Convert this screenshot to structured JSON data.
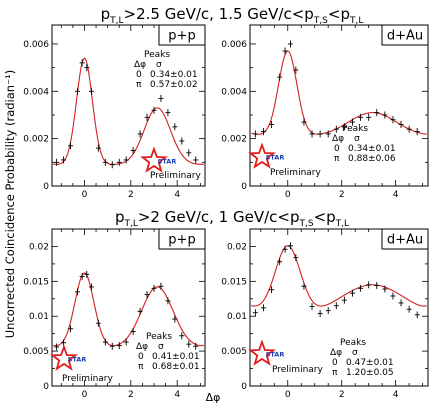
{
  "figure": {
    "row_titles": [
      "p_T,L>2.5 GeV/c,  1.5 GeV/c<p_T,S<p_T,L",
      "p_T,L>2 GeV/c,  1 GeV/c<p_T,S<p_T,L"
    ],
    "row_title_parts": [
      {
        "a": "p",
        "a_sub": "T,L",
        "b": ">2.5 GeV/c,  1.5 GeV/c<p",
        "b_sub": "T,S",
        "c": "<p",
        "c_sub": "T,L"
      },
      {
        "a": "p",
        "a_sub": "T,L",
        "b": ">2 GeV/c,  1 GeV/c<p",
        "b_sub": "T,S",
        "c": "<p",
        "c_sub": "T,L"
      }
    ],
    "ylabel": "Uncorrected Coincidence Probability (radian⁻¹)",
    "xlabel": "Δφ",
    "legend_header": "Peaks",
    "legend_cols": [
      "Δφ",
      "σ"
    ],
    "star_label": "STAR",
    "preliminary_label": "Preliminary",
    "colors": {
      "fit": "#d42020",
      "data": "#000000",
      "star": "#e41b1b",
      "star_text": "#1b3fb5"
    }
  },
  "chart_data": [
    {
      "type": "scatter",
      "panel": "top-left",
      "system": "p+p",
      "xlim": [
        -1.4,
        5.2
      ],
      "ylim": [
        0,
        0.0068
      ],
      "xticks": [
        0,
        2,
        4
      ],
      "yticks": [
        0,
        0.002,
        0.004,
        0.006
      ],
      "ytick_labels": [
        "0",
        "0.002",
        "0.004",
        "0.006"
      ],
      "fit": {
        "baseline": 0.0009,
        "near_amp": 0.0045,
        "near_sigma": 0.34,
        "away_amp": 0.0024,
        "away_sigma": 0.57
      },
      "peaks": [
        {
          "label": "0",
          "sigma": "0.34±0.01"
        },
        {
          "label": "π",
          "sigma": "0.57±0.02"
        }
      ],
      "x": [
        -1.2,
        -0.9,
        -0.6,
        -0.3,
        -0.1,
        0.1,
        0.3,
        0.6,
        0.9,
        1.2,
        1.5,
        1.8,
        2.1,
        2.4,
        2.7,
        3.0,
        3.3,
        3.6,
        3.9,
        4.2,
        4.5,
        4.8
      ],
      "y": [
        0.001,
        0.0011,
        0.0017,
        0.004,
        0.0052,
        0.005,
        0.004,
        0.0016,
        0.001,
        0.0009,
        0.001,
        0.0011,
        0.0015,
        0.0022,
        0.0029,
        0.0032,
        0.0037,
        0.0031,
        0.0025,
        0.0019,
        0.0014,
        0.0011
      ],
      "has_star_logo": true
    },
    {
      "type": "scatter",
      "panel": "top-right",
      "system": "d+Au",
      "xlim": [
        -1.4,
        5.2
      ],
      "ylim": [
        0,
        0.0068
      ],
      "xticks": [
        0,
        2,
        4
      ],
      "yticks": [
        0,
        0.002,
        0.004,
        0.006
      ],
      "ytick_labels": [
        "0",
        "0.002",
        "0.004",
        "0.006"
      ],
      "fit": {
        "baseline": 0.0021,
        "near_amp": 0.0036,
        "near_sigma": 0.34,
        "away_amp": 0.001,
        "away_sigma": 0.88
      },
      "peaks": [
        {
          "label": "0",
          "sigma": "0.34±0.01"
        },
        {
          "label": "π",
          "sigma": "0.88±0.06"
        }
      ],
      "x": [
        -1.2,
        -0.9,
        -0.6,
        -0.3,
        -0.1,
        0.1,
        0.3,
        0.6,
        0.9,
        1.2,
        1.5,
        1.8,
        2.1,
        2.4,
        2.7,
        3.0,
        3.3,
        3.6,
        3.9,
        4.2,
        4.5,
        4.8
      ],
      "y": [
        0.0022,
        0.0023,
        0.0026,
        0.0046,
        0.0057,
        0.006,
        0.0049,
        0.0027,
        0.0022,
        0.0022,
        0.0022,
        0.0024,
        0.0025,
        0.0027,
        0.0029,
        0.0029,
        0.0031,
        0.003,
        0.0028,
        0.0026,
        0.0024,
        0.0023
      ],
      "has_star_logo": true
    },
    {
      "type": "scatter",
      "panel": "bottom-left",
      "system": "p+p",
      "xlim": [
        -1.4,
        5.2
      ],
      "ylim": [
        0,
        0.0225
      ],
      "xticks": [
        0,
        2,
        4
      ],
      "yticks": [
        0,
        0.005,
        0.01,
        0.015,
        0.02
      ],
      "ytick_labels": [
        "0",
        "0.005",
        "0.01",
        "0.015",
        "0.02"
      ],
      "fit": {
        "baseline": 0.0055,
        "near_amp": 0.0107,
        "near_sigma": 0.41,
        "away_amp": 0.0087,
        "away_sigma": 0.68
      },
      "peaks": [
        {
          "label": "0",
          "sigma": "0.41±0.01"
        },
        {
          "label": "π",
          "sigma": "0.68±0.01"
        }
      ],
      "x": [
        -1.2,
        -0.9,
        -0.6,
        -0.3,
        -0.1,
        0.1,
        0.3,
        0.6,
        0.9,
        1.2,
        1.5,
        1.8,
        2.1,
        2.4,
        2.7,
        3.0,
        3.3,
        3.6,
        3.9,
        4.2,
        4.5,
        4.8
      ],
      "y": [
        0.0056,
        0.0062,
        0.0082,
        0.0135,
        0.0157,
        0.016,
        0.0142,
        0.009,
        0.0063,
        0.0057,
        0.0058,
        0.0063,
        0.0078,
        0.0107,
        0.0131,
        0.014,
        0.0143,
        0.0122,
        0.0096,
        0.0072,
        0.006,
        0.0057
      ],
      "has_star_logo": true
    },
    {
      "type": "scatter",
      "panel": "bottom-right",
      "system": "d+Au",
      "xlim": [
        -1.4,
        5.2
      ],
      "ylim": [
        0,
        0.0225
      ],
      "xticks": [
        0,
        2,
        4
      ],
      "yticks": [
        0,
        0.005,
        0.01,
        0.015,
        0.02
      ],
      "ytick_labels": [
        "0",
        "0.005",
        "0.01",
        "0.015",
        "0.02"
      ],
      "fit": {
        "baseline": 0.0098,
        "near_amp": 0.01,
        "near_sigma": 0.47,
        "away_amp": 0.0047,
        "away_sigma": 1.2
      },
      "peaks": [
        {
          "label": "0",
          "sigma": "0.47±0.01"
        },
        {
          "label": "π",
          "sigma": "1.20±0.05"
        }
      ],
      "x": [
        -1.2,
        -0.9,
        -0.6,
        -0.3,
        -0.1,
        0.1,
        0.3,
        0.6,
        0.9,
        1.2,
        1.5,
        1.8,
        2.1,
        2.4,
        2.7,
        3.0,
        3.3,
        3.6,
        3.9,
        4.2,
        4.5,
        4.8
      ],
      "y": [
        0.0105,
        0.0112,
        0.0138,
        0.0178,
        0.0196,
        0.0201,
        0.0184,
        0.0143,
        0.0114,
        0.0104,
        0.0108,
        0.0115,
        0.0123,
        0.0133,
        0.014,
        0.0145,
        0.0144,
        0.0139,
        0.0129,
        0.0119,
        0.011,
        0.0102
      ],
      "has_star_logo": true
    }
  ]
}
